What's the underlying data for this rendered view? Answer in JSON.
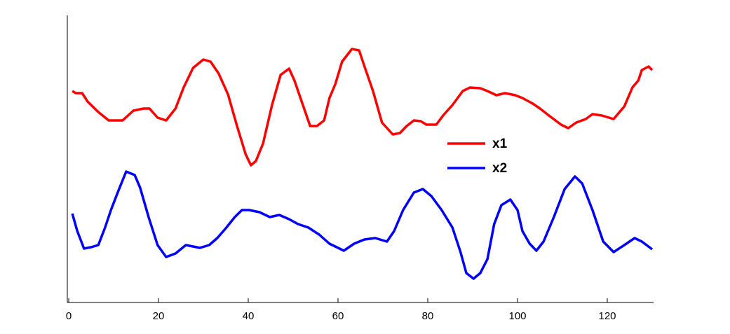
{
  "chart_data": {
    "type": "line",
    "xlim": [
      0,
      130
    ],
    "xticks": [
      0,
      20,
      40,
      60,
      80,
      100,
      120
    ],
    "ylim": [
      0,
      410
    ],
    "series": [
      {
        "name": "x1",
        "color": "#ff0000",
        "x": [
          0.8,
          1.6,
          3.0,
          4.2,
          6.6,
          8.9,
          12.0,
          14.4,
          16.7,
          18.0,
          19.8,
          21.7,
          23.8,
          25.6,
          27.7,
          30.0,
          31.6,
          33.4,
          35.5,
          37.5,
          39.4,
          40.6,
          41.7,
          43.3,
          45.3,
          47.2,
          49.1,
          50.3,
          51.9,
          53.8,
          55.3,
          56.9,
          58.1,
          59.4,
          60.9,
          63.1,
          64.7,
          65.9,
          67.8,
          69.8,
          72.2,
          73.8,
          75.3,
          76.9,
          78.4,
          79.7,
          81.9,
          83.4,
          85.5,
          87.8,
          89.4,
          91.7,
          93.3,
          95.3,
          97.2,
          99.5,
          101.1,
          103.4,
          105.0,
          107.0,
          109.7,
          111.3,
          113.1,
          115.2,
          116.7,
          118.8,
          121.4,
          123.8,
          125.6,
          126.9,
          127.7,
          129.2,
          130.0
        ],
        "values": [
          302,
          299,
          299,
          287,
          272,
          260,
          260,
          274,
          277,
          277,
          264,
          260,
          277,
          307,
          335,
          347,
          344,
          327,
          297,
          252,
          212,
          196,
          202,
          227,
          282,
          325,
          334,
          317,
          287,
          252,
          252,
          260,
          292,
          312,
          344,
          362,
          360,
          337,
          302,
          257,
          240,
          242,
          252,
          260,
          259,
          254,
          254,
          267,
          282,
          302,
          307,
          306,
          302,
          296,
          299,
          296,
          292,
          284,
          277,
          267,
          254,
          249,
          257,
          262,
          269,
          267,
          262,
          280,
          307,
          317,
          332,
          337,
          332
        ]
      },
      {
        "name": "x2",
        "color": "#0000ff",
        "x": [
          0.8,
          1.9,
          3.4,
          5.0,
          6.6,
          8.1,
          9.4,
          10.9,
          12.8,
          14.7,
          15.9,
          17.8,
          19.8,
          21.7,
          23.8,
          26.1,
          27.7,
          29.2,
          31.3,
          33.1,
          35.0,
          37.0,
          38.6,
          40.2,
          42.5,
          44.8,
          46.9,
          49.1,
          51.1,
          53.4,
          55.8,
          58.1,
          61.3,
          63.6,
          65.9,
          68.3,
          70.9,
          72.5,
          74.5,
          76.9,
          78.9,
          80.8,
          83.1,
          85.5,
          87.3,
          88.6,
          90.2,
          91.7,
          93.3,
          94.8,
          96.4,
          98.4,
          100.0,
          101.1,
          102.7,
          104.2,
          105.8,
          108.1,
          110.5,
          112.8,
          114.4,
          116.7,
          119.1,
          121.4,
          123.8,
          126.1,
          127.7,
          130.0
        ],
        "values": [
          127,
          102,
          77,
          79,
          82,
          107,
          132,
          157,
          187,
          182,
          164,
          122,
          82,
          65,
          70,
          82,
          80,
          78,
          82,
          92,
          106,
          122,
          132,
          132,
          129,
          122,
          125,
          119,
          112,
          107,
          97,
          84,
          74,
          84,
          90,
          92,
          87,
          102,
          132,
          157,
          162,
          152,
          132,
          107,
          72,
          42,
          34,
          42,
          62,
          112,
          139,
          147,
          132,
          102,
          84,
          74,
          87,
          122,
          162,
          180,
          170,
          132,
          87,
          72,
          82,
          92,
          87,
          76
        ]
      }
    ]
  }
}
